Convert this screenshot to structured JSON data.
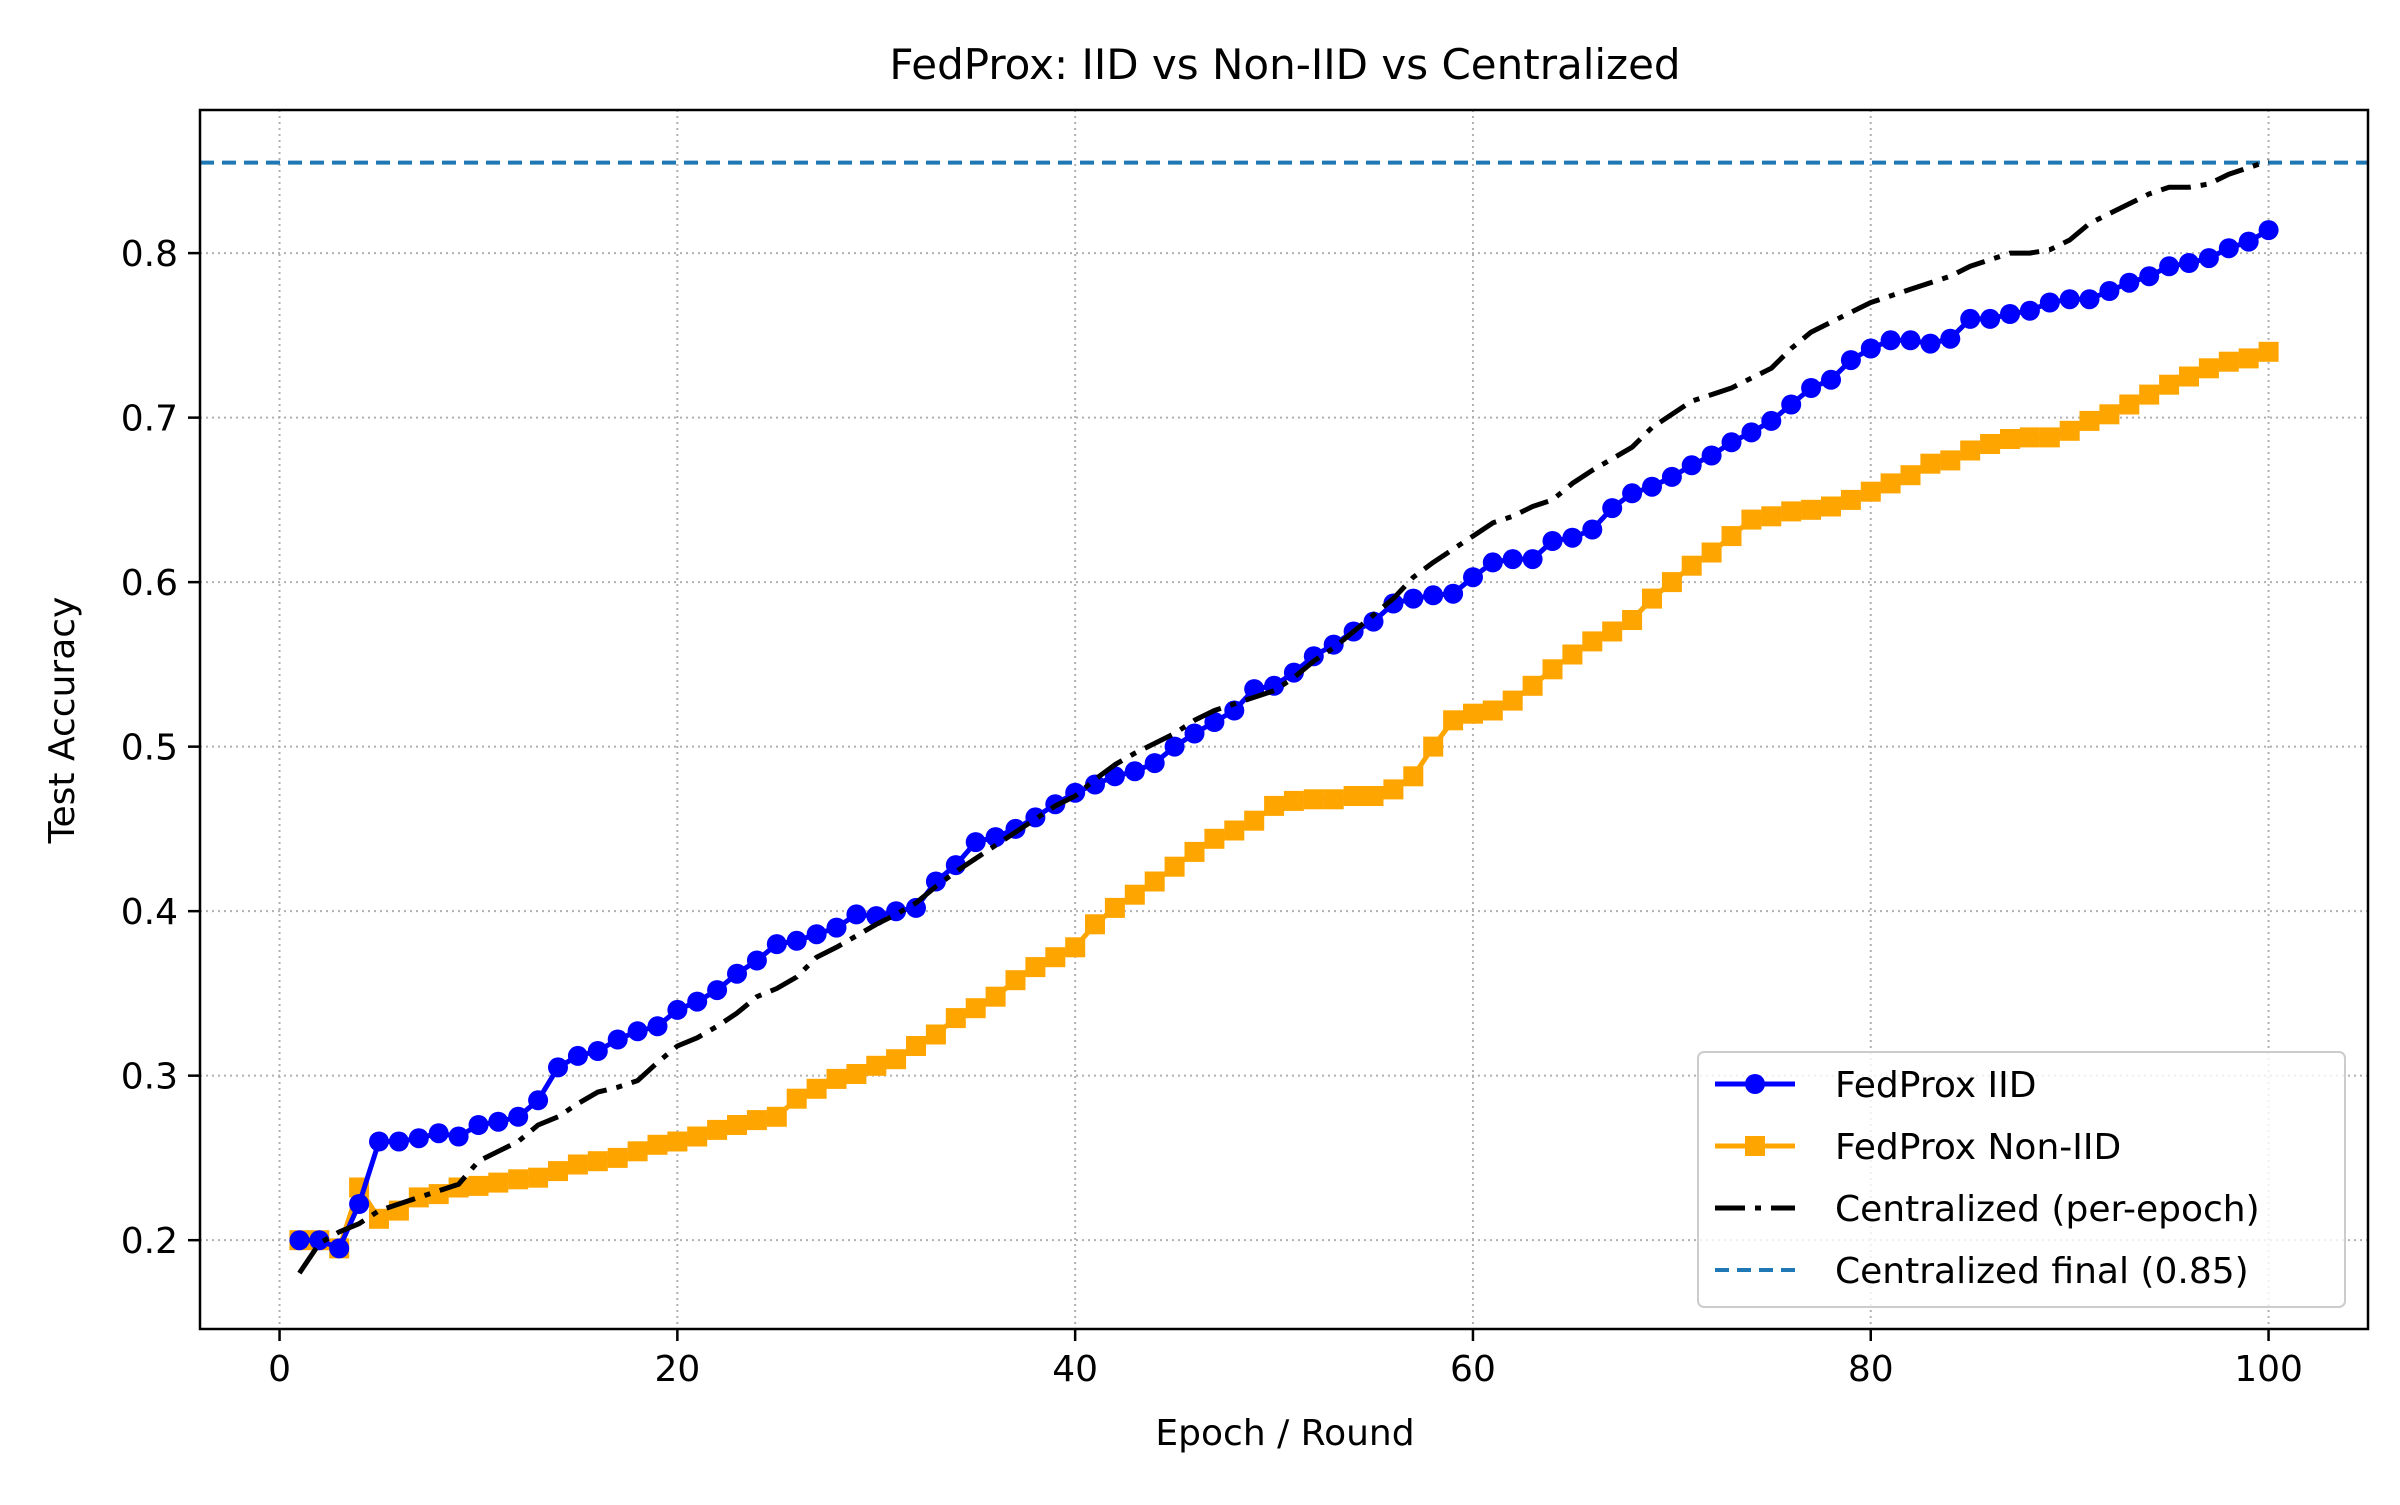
{
  "chart_data": {
    "type": "line",
    "title": "FedProx: IID vs Non-IID vs Centralized",
    "xlabel": "Epoch / Round",
    "ylabel": "Test Accuracy",
    "xlim": [
      -4,
      105
    ],
    "ylim": [
      0.146,
      0.887
    ],
    "xticks": [
      0,
      20,
      40,
      60,
      80,
      100
    ],
    "yticks": [
      0.2,
      0.3,
      0.4,
      0.5,
      0.6,
      0.7,
      0.8
    ],
    "grid": true,
    "legend_position": "lower-right",
    "series": [
      {
        "name": "FedProx IID",
        "color": "#0000ff",
        "marker": "circle",
        "line_style": "solid",
        "x": [
          1,
          2,
          3,
          4,
          5,
          6,
          7,
          8,
          9,
          10,
          11,
          12,
          13,
          14,
          15,
          16,
          17,
          18,
          19,
          20,
          21,
          22,
          23,
          24,
          25,
          26,
          27,
          28,
          29,
          30,
          31,
          32,
          33,
          34,
          35,
          36,
          37,
          38,
          39,
          40,
          41,
          42,
          43,
          44,
          45,
          46,
          47,
          48,
          49,
          50,
          51,
          52,
          53,
          54,
          55,
          56,
          57,
          58,
          59,
          60,
          61,
          62,
          63,
          64,
          65,
          66,
          67,
          68,
          69,
          70,
          71,
          72,
          73,
          74,
          75,
          76,
          77,
          78,
          79,
          80,
          81,
          82,
          83,
          84,
          85,
          86,
          87,
          88,
          89,
          90,
          91,
          92,
          93,
          94,
          95,
          96,
          97,
          98,
          99,
          100
        ],
        "values": [
          0.2,
          0.2,
          0.195,
          0.222,
          0.26,
          0.26,
          0.262,
          0.265,
          0.263,
          0.27,
          0.272,
          0.275,
          0.285,
          0.305,
          0.312,
          0.315,
          0.322,
          0.327,
          0.33,
          0.34,
          0.345,
          0.352,
          0.362,
          0.37,
          0.38,
          0.382,
          0.386,
          0.39,
          0.398,
          0.397,
          0.4,
          0.402,
          0.418,
          0.428,
          0.442,
          0.445,
          0.45,
          0.457,
          0.465,
          0.472,
          0.477,
          0.482,
          0.485,
          0.49,
          0.5,
          0.508,
          0.515,
          0.522,
          0.535,
          0.537,
          0.545,
          0.555,
          0.562,
          0.57,
          0.576,
          0.587,
          0.59,
          0.592,
          0.593,
          0.603,
          0.612,
          0.614,
          0.614,
          0.625,
          0.627,
          0.632,
          0.645,
          0.654,
          0.658,
          0.664,
          0.671,
          0.677,
          0.685,
          0.691,
          0.698,
          0.708,
          0.718,
          0.723,
          0.735,
          0.742,
          0.747,
          0.747,
          0.745,
          0.748,
          0.76,
          0.76,
          0.763,
          0.765,
          0.77,
          0.772,
          0.772,
          0.777,
          0.782,
          0.786,
          0.792,
          0.794,
          0.797,
          0.803,
          0.807,
          0.814
        ]
      },
      {
        "name": "FedProx Non-IID",
        "color": "#ffa500",
        "marker": "square",
        "line_style": "solid",
        "x": [
          1,
          2,
          3,
          4,
          5,
          6,
          7,
          8,
          9,
          10,
          11,
          12,
          13,
          14,
          15,
          16,
          17,
          18,
          19,
          20,
          21,
          22,
          23,
          24,
          25,
          26,
          27,
          28,
          29,
          30,
          31,
          32,
          33,
          34,
          35,
          36,
          37,
          38,
          39,
          40,
          41,
          42,
          43,
          44,
          45,
          46,
          47,
          48,
          49,
          50,
          51,
          52,
          53,
          54,
          55,
          56,
          57,
          58,
          59,
          60,
          61,
          62,
          63,
          64,
          65,
          66,
          67,
          68,
          69,
          70,
          71,
          72,
          73,
          74,
          75,
          76,
          77,
          78,
          79,
          80,
          81,
          82,
          83,
          84,
          85,
          86,
          87,
          88,
          89,
          90,
          91,
          92,
          93,
          94,
          95,
          96,
          97,
          98,
          99,
          100
        ],
        "values": [
          0.2,
          0.2,
          0.195,
          0.232,
          0.213,
          0.218,
          0.226,
          0.228,
          0.232,
          0.233,
          0.235,
          0.237,
          0.238,
          0.242,
          0.246,
          0.248,
          0.25,
          0.254,
          0.258,
          0.26,
          0.263,
          0.267,
          0.27,
          0.273,
          0.275,
          0.286,
          0.292,
          0.298,
          0.301,
          0.306,
          0.31,
          0.318,
          0.325,
          0.335,
          0.341,
          0.348,
          0.358,
          0.366,
          0.372,
          0.378,
          0.392,
          0.402,
          0.41,
          0.418,
          0.427,
          0.436,
          0.444,
          0.449,
          0.455,
          0.464,
          0.467,
          0.468,
          0.468,
          0.47,
          0.47,
          0.474,
          0.482,
          0.5,
          0.516,
          0.52,
          0.522,
          0.528,
          0.537,
          0.547,
          0.556,
          0.564,
          0.57,
          0.577,
          0.59,
          0.6,
          0.61,
          0.618,
          0.628,
          0.638,
          0.64,
          0.643,
          0.644,
          0.646,
          0.65,
          0.655,
          0.66,
          0.665,
          0.672,
          0.674,
          0.68,
          0.684,
          0.687,
          0.688,
          0.688,
          0.692,
          0.698,
          0.702,
          0.708,
          0.714,
          0.72,
          0.725,
          0.73,
          0.734,
          0.736,
          0.74
        ]
      },
      {
        "name": "Centralized (per-epoch)",
        "color": "#000000",
        "marker": "none",
        "line_style": "dash-dot",
        "x": [
          1,
          2,
          3,
          4,
          5,
          6,
          7,
          8,
          9,
          10,
          11,
          12,
          13,
          14,
          15,
          16,
          17,
          18,
          19,
          20,
          21,
          22,
          23,
          24,
          25,
          26,
          27,
          28,
          29,
          30,
          31,
          32,
          33,
          34,
          35,
          36,
          37,
          38,
          39,
          40,
          41,
          42,
          43,
          44,
          45,
          46,
          47,
          48,
          49,
          50,
          51,
          52,
          53,
          54,
          55,
          56,
          57,
          58,
          59,
          60,
          61,
          62,
          63,
          64,
          65,
          66,
          67,
          68,
          69,
          70,
          71,
          72,
          73,
          74,
          75,
          76,
          77,
          78,
          79,
          80,
          81,
          82,
          83,
          84,
          85,
          86,
          87,
          88,
          89,
          90,
          91,
          92,
          93,
          94,
          95,
          96,
          97,
          98,
          99,
          100
        ],
        "values": [
          0.18,
          0.198,
          0.205,
          0.21,
          0.218,
          0.222,
          0.226,
          0.23,
          0.234,
          0.248,
          0.254,
          0.26,
          0.27,
          0.275,
          0.283,
          0.29,
          0.293,
          0.297,
          0.308,
          0.318,
          0.323,
          0.33,
          0.338,
          0.348,
          0.353,
          0.36,
          0.372,
          0.378,
          0.385,
          0.392,
          0.398,
          0.405,
          0.415,
          0.424,
          0.432,
          0.44,
          0.448,
          0.456,
          0.464,
          0.47,
          0.48,
          0.489,
          0.496,
          0.502,
          0.508,
          0.516,
          0.522,
          0.526,
          0.53,
          0.534,
          0.542,
          0.552,
          0.56,
          0.57,
          0.58,
          0.59,
          0.603,
          0.612,
          0.62,
          0.628,
          0.636,
          0.64,
          0.646,
          0.65,
          0.66,
          0.668,
          0.675,
          0.682,
          0.694,
          0.702,
          0.71,
          0.714,
          0.718,
          0.724,
          0.73,
          0.742,
          0.752,
          0.758,
          0.764,
          0.77,
          0.774,
          0.778,
          0.782,
          0.786,
          0.792,
          0.796,
          0.8,
          0.8,
          0.802,
          0.808,
          0.818,
          0.824,
          0.83,
          0.836,
          0.84,
          0.84,
          0.842,
          0.848,
          0.852,
          0.856
        ]
      },
      {
        "name": "Centralized final (0.85)",
        "color": "#1f77b4",
        "marker": "none",
        "line_style": "dashed",
        "type": "hline",
        "value": 0.855
      }
    ]
  }
}
